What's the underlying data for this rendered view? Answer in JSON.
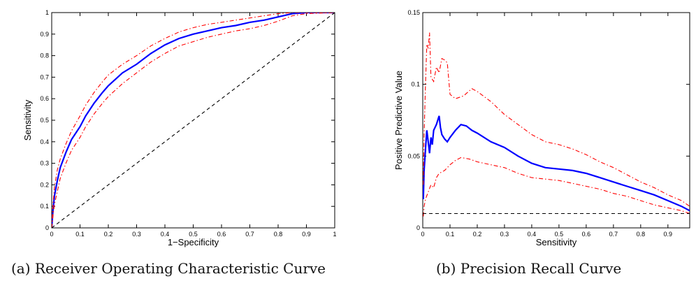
{
  "captions": {
    "a": "(a) Receiver Operating Characteristic Curve",
    "b": "(b) Precision Recall Curve"
  },
  "chart_data": [
    {
      "type": "line",
      "title": "",
      "xlabel": "1−Specificity",
      "ylabel": "Sensitivity",
      "xlim": [
        0,
        1
      ],
      "ylim": [
        0,
        1
      ],
      "xticks": [
        0,
        0.1,
        0.2,
        0.3,
        0.4,
        0.5,
        0.6,
        0.7,
        0.8,
        0.9,
        1
      ],
      "yticks": [
        0,
        0.1,
        0.2,
        0.3,
        0.4,
        0.5,
        0.6,
        0.7,
        0.8,
        0.9,
        1
      ],
      "xtick_labels": [
        "0",
        "0.1",
        "0.2",
        "0.3",
        "0.4",
        "0.5",
        "0.6",
        "0.7",
        "0.8",
        "0.9",
        "1"
      ],
      "ytick_labels": [
        "0",
        "0.1",
        "0.2",
        "0.3",
        "0.4",
        "0.5",
        "0.6",
        "0.7",
        "0.8",
        "0.9",
        "1"
      ],
      "grid": false,
      "legend": "none",
      "series": [
        {
          "color": "#0000ff",
          "style": "solid",
          "points": [
            [
              0,
              0
            ],
            [
              0.005,
              0.09
            ],
            [
              0.01,
              0.15
            ],
            [
              0.02,
              0.22
            ],
            [
              0.03,
              0.28
            ],
            [
              0.05,
              0.35
            ],
            [
              0.07,
              0.41
            ],
            [
              0.1,
              0.47
            ],
            [
              0.12,
              0.52
            ],
            [
              0.15,
              0.58
            ],
            [
              0.18,
              0.63
            ],
            [
              0.2,
              0.66
            ],
            [
              0.25,
              0.72
            ],
            [
              0.3,
              0.76
            ],
            [
              0.35,
              0.81
            ],
            [
              0.4,
              0.85
            ],
            [
              0.45,
              0.88
            ],
            [
              0.5,
              0.9
            ],
            [
              0.55,
              0.915
            ],
            [
              0.6,
              0.93
            ],
            [
              0.65,
              0.94
            ],
            [
              0.7,
              0.955
            ],
            [
              0.75,
              0.965
            ],
            [
              0.8,
              0.98
            ],
            [
              0.85,
              0.995
            ],
            [
              0.9,
              1
            ],
            [
              1,
              1
            ]
          ]
        },
        {
          "color": "#ff0000",
          "style": "dashdot",
          "points": [
            [
              0,
              0
            ],
            [
              0.005,
              0.12
            ],
            [
              0.01,
              0.19
            ],
            [
              0.02,
              0.27
            ],
            [
              0.03,
              0.32
            ],
            [
              0.05,
              0.39
            ],
            [
              0.07,
              0.45
            ],
            [
              0.1,
              0.52
            ],
            [
              0.12,
              0.57
            ],
            [
              0.15,
              0.63
            ],
            [
              0.18,
              0.68
            ],
            [
              0.2,
              0.71
            ],
            [
              0.25,
              0.76
            ],
            [
              0.3,
              0.8
            ],
            [
              0.35,
              0.845
            ],
            [
              0.4,
              0.88
            ],
            [
              0.45,
              0.91
            ],
            [
              0.5,
              0.93
            ],
            [
              0.55,
              0.945
            ],
            [
              0.6,
              0.955
            ],
            [
              0.65,
              0.965
            ],
            [
              0.7,
              0.975
            ],
            [
              0.75,
              0.985
            ],
            [
              0.8,
              0.995
            ],
            [
              0.85,
              1
            ],
            [
              1,
              1
            ]
          ]
        },
        {
          "color": "#ff0000",
          "style": "dashdot",
          "points": [
            [
              0,
              0
            ],
            [
              0.005,
              0.06
            ],
            [
              0.01,
              0.11
            ],
            [
              0.02,
              0.17
            ],
            [
              0.03,
              0.23
            ],
            [
              0.05,
              0.3
            ],
            [
              0.07,
              0.36
            ],
            [
              0.1,
              0.42
            ],
            [
              0.12,
              0.47
            ],
            [
              0.15,
              0.53
            ],
            [
              0.18,
              0.58
            ],
            [
              0.2,
              0.61
            ],
            [
              0.25,
              0.67
            ],
            [
              0.3,
              0.72
            ],
            [
              0.35,
              0.77
            ],
            [
              0.4,
              0.81
            ],
            [
              0.45,
              0.845
            ],
            [
              0.5,
              0.865
            ],
            [
              0.55,
              0.885
            ],
            [
              0.6,
              0.9
            ],
            [
              0.65,
              0.915
            ],
            [
              0.7,
              0.925
            ],
            [
              0.75,
              0.94
            ],
            [
              0.8,
              0.96
            ],
            [
              0.85,
              0.985
            ],
            [
              0.9,
              0.995
            ],
            [
              1,
              1
            ]
          ]
        },
        {
          "color": "#000000",
          "style": "dashed",
          "points": [
            [
              0,
              0
            ],
            [
              1,
              1
            ]
          ]
        }
      ]
    },
    {
      "type": "line",
      "title": "",
      "xlabel": "Sensitivity",
      "ylabel": "Positive Predictive Value",
      "xlim": [
        0,
        0.98
      ],
      "ylim": [
        0,
        0.15
      ],
      "xticks": [
        0,
        0.1,
        0.2,
        0.3,
        0.4,
        0.5,
        0.6,
        0.7,
        0.8,
        0.9
      ],
      "yticks": [
        0,
        0.05,
        0.1,
        0.15
      ],
      "xtick_labels": [
        "0",
        "0.1",
        "0.2",
        "0.3",
        "0.4",
        "0.5",
        "0.6",
        "0.7",
        "0.8",
        "0.9"
      ],
      "ytick_labels": [
        "0",
        "0.05",
        "0.1",
        "0.15"
      ],
      "grid": false,
      "legend": "none",
      "series": [
        {
          "color": "#0000ff",
          "style": "solid",
          "points": [
            [
              0.002,
              0.02
            ],
            [
              0.005,
              0.04
            ],
            [
              0.01,
              0.055
            ],
            [
              0.015,
              0.068
            ],
            [
              0.02,
              0.06
            ],
            [
              0.025,
              0.052
            ],
            [
              0.03,
              0.063
            ],
            [
              0.035,
              0.058
            ],
            [
              0.04,
              0.068
            ],
            [
              0.05,
              0.072
            ],
            [
              0.06,
              0.078
            ],
            [
              0.065,
              0.07
            ],
            [
              0.07,
              0.065
            ],
            [
              0.08,
              0.062
            ],
            [
              0.09,
              0.06
            ],
            [
              0.1,
              0.063
            ],
            [
              0.12,
              0.068
            ],
            [
              0.14,
              0.072
            ],
            [
              0.16,
              0.071
            ],
            [
              0.18,
              0.068
            ],
            [
              0.2,
              0.066
            ],
            [
              0.25,
              0.06
            ],
            [
              0.3,
              0.056
            ],
            [
              0.35,
              0.05
            ],
            [
              0.4,
              0.045
            ],
            [
              0.45,
              0.042
            ],
            [
              0.5,
              0.041
            ],
            [
              0.55,
              0.04
            ],
            [
              0.6,
              0.038
            ],
            [
              0.65,
              0.035
            ],
            [
              0.7,
              0.032
            ],
            [
              0.75,
              0.029
            ],
            [
              0.8,
              0.026
            ],
            [
              0.85,
              0.023
            ],
            [
              0.9,
              0.019
            ],
            [
              0.95,
              0.015
            ],
            [
              0.98,
              0.012
            ]
          ]
        },
        {
          "color": "#ff0000",
          "style": "dashdot",
          "points": [
            [
              0.002,
              0.03
            ],
            [
              0.005,
              0.065
            ],
            [
              0.01,
              0.1
            ],
            [
              0.015,
              0.128
            ],
            [
              0.02,
              0.125
            ],
            [
              0.025,
              0.136
            ],
            [
              0.03,
              0.105
            ],
            [
              0.04,
              0.102
            ],
            [
              0.05,
              0.112
            ],
            [
              0.06,
              0.108
            ],
            [
              0.07,
              0.118
            ],
            [
              0.08,
              0.117
            ],
            [
              0.09,
              0.115
            ],
            [
              0.1,
              0.093
            ],
            [
              0.12,
              0.09
            ],
            [
              0.15,
              0.092
            ],
            [
              0.18,
              0.097
            ],
            [
              0.2,
              0.095
            ],
            [
              0.25,
              0.088
            ],
            [
              0.3,
              0.079
            ],
            [
              0.35,
              0.072
            ],
            [
              0.4,
              0.065
            ],
            [
              0.45,
              0.06
            ],
            [
              0.5,
              0.058
            ],
            [
              0.55,
              0.055
            ],
            [
              0.6,
              0.051
            ],
            [
              0.65,
              0.046
            ],
            [
              0.7,
              0.042
            ],
            [
              0.75,
              0.037
            ],
            [
              0.8,
              0.032
            ],
            [
              0.85,
              0.028
            ],
            [
              0.9,
              0.023
            ],
            [
              0.95,
              0.019
            ],
            [
              0.98,
              0.015
            ]
          ]
        },
        {
          "color": "#ff0000",
          "style": "dashdot",
          "points": [
            [
              0.002,
              0.008
            ],
            [
              0.005,
              0.015
            ],
            [
              0.01,
              0.02
            ],
            [
              0.02,
              0.025
            ],
            [
              0.03,
              0.03
            ],
            [
              0.04,
              0.028
            ],
            [
              0.05,
              0.035
            ],
            [
              0.06,
              0.038
            ],
            [
              0.08,
              0.04
            ],
            [
              0.1,
              0.044
            ],
            [
              0.12,
              0.047
            ],
            [
              0.14,
              0.049
            ],
            [
              0.17,
              0.048
            ],
            [
              0.2,
              0.046
            ],
            [
              0.25,
              0.044
            ],
            [
              0.3,
              0.042
            ],
            [
              0.35,
              0.038
            ],
            [
              0.4,
              0.035
            ],
            [
              0.45,
              0.034
            ],
            [
              0.5,
              0.033
            ],
            [
              0.55,
              0.031
            ],
            [
              0.6,
              0.029
            ],
            [
              0.65,
              0.027
            ],
            [
              0.7,
              0.024
            ],
            [
              0.75,
              0.022
            ],
            [
              0.8,
              0.019
            ],
            [
              0.85,
              0.016
            ],
            [
              0.9,
              0.014
            ],
            [
              0.95,
              0.012
            ],
            [
              0.98,
              0.01
            ]
          ]
        },
        {
          "color": "#000000",
          "style": "dashed",
          "points": [
            [
              0,
              0.01
            ],
            [
              0.98,
              0.01
            ]
          ]
        }
      ]
    }
  ]
}
